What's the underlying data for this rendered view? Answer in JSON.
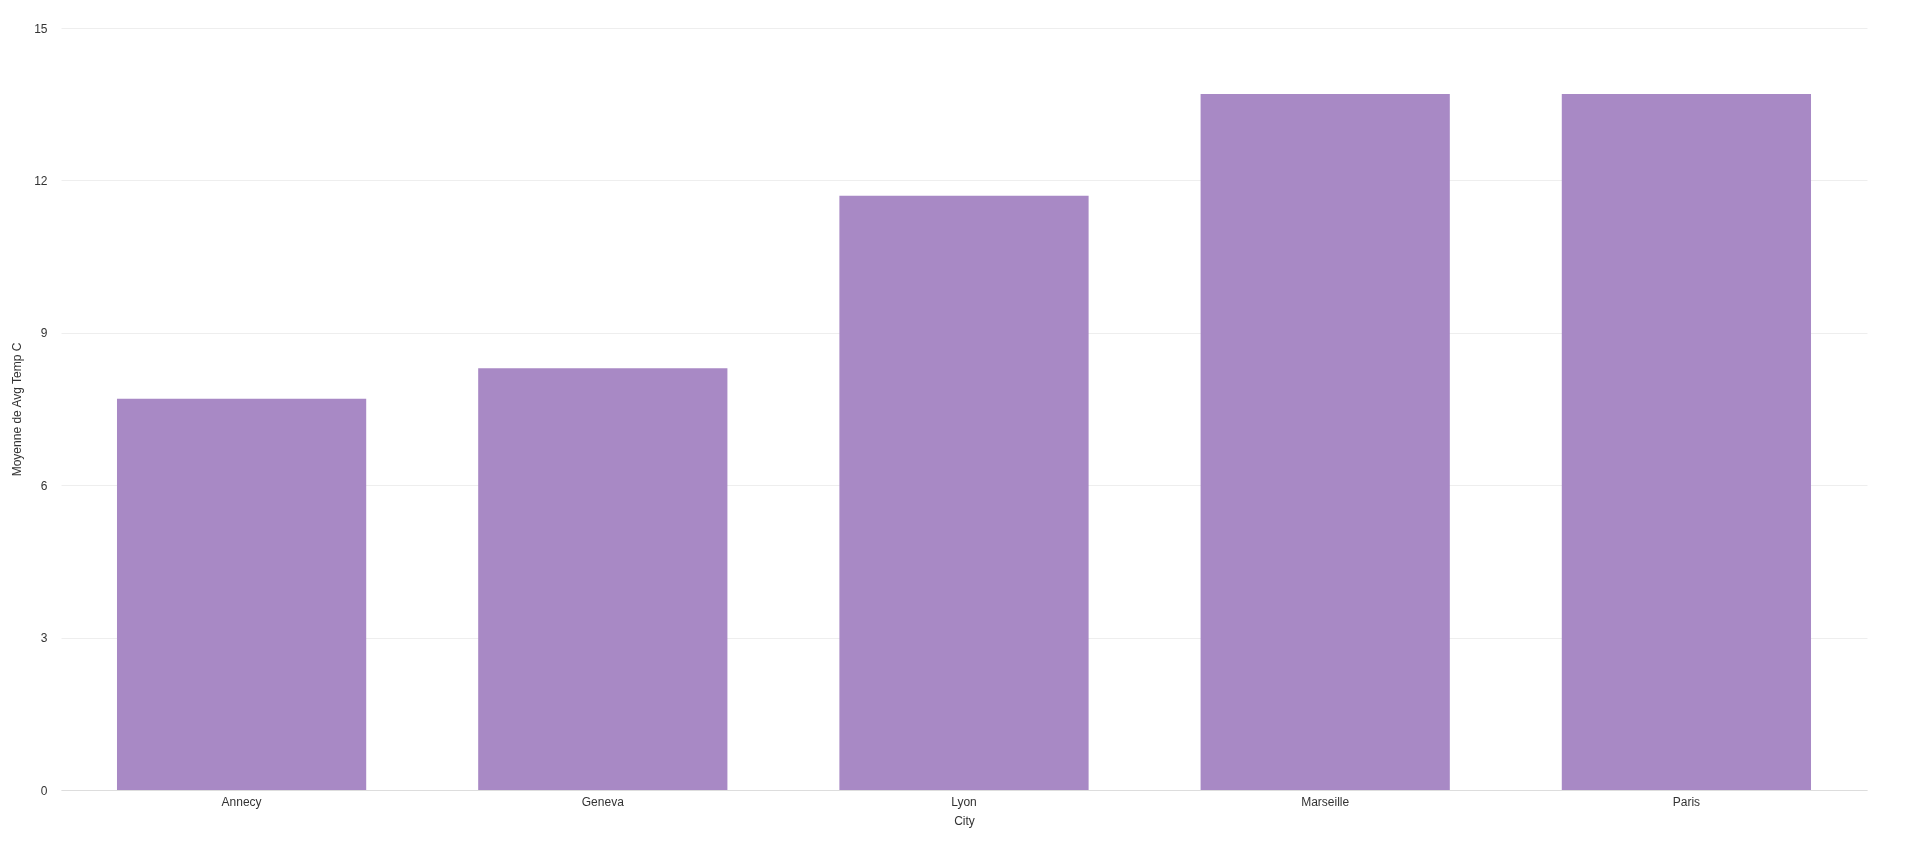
{
  "chart_data": {
    "type": "bar",
    "xlabel": "City",
    "ylabel": "Moyenne de Avg Temp C",
    "categories": [
      "Annecy",
      "Geneva",
      "Lyon",
      "Marseille",
      "Paris"
    ],
    "values": [
      7.7,
      8.3,
      11.7,
      13.7,
      13.7
    ],
    "color": "#a889c5",
    "ylim": [
      0,
      15
    ],
    "yticks": [
      0,
      3,
      6,
      9,
      12,
      15
    ],
    "grid": "y"
  }
}
